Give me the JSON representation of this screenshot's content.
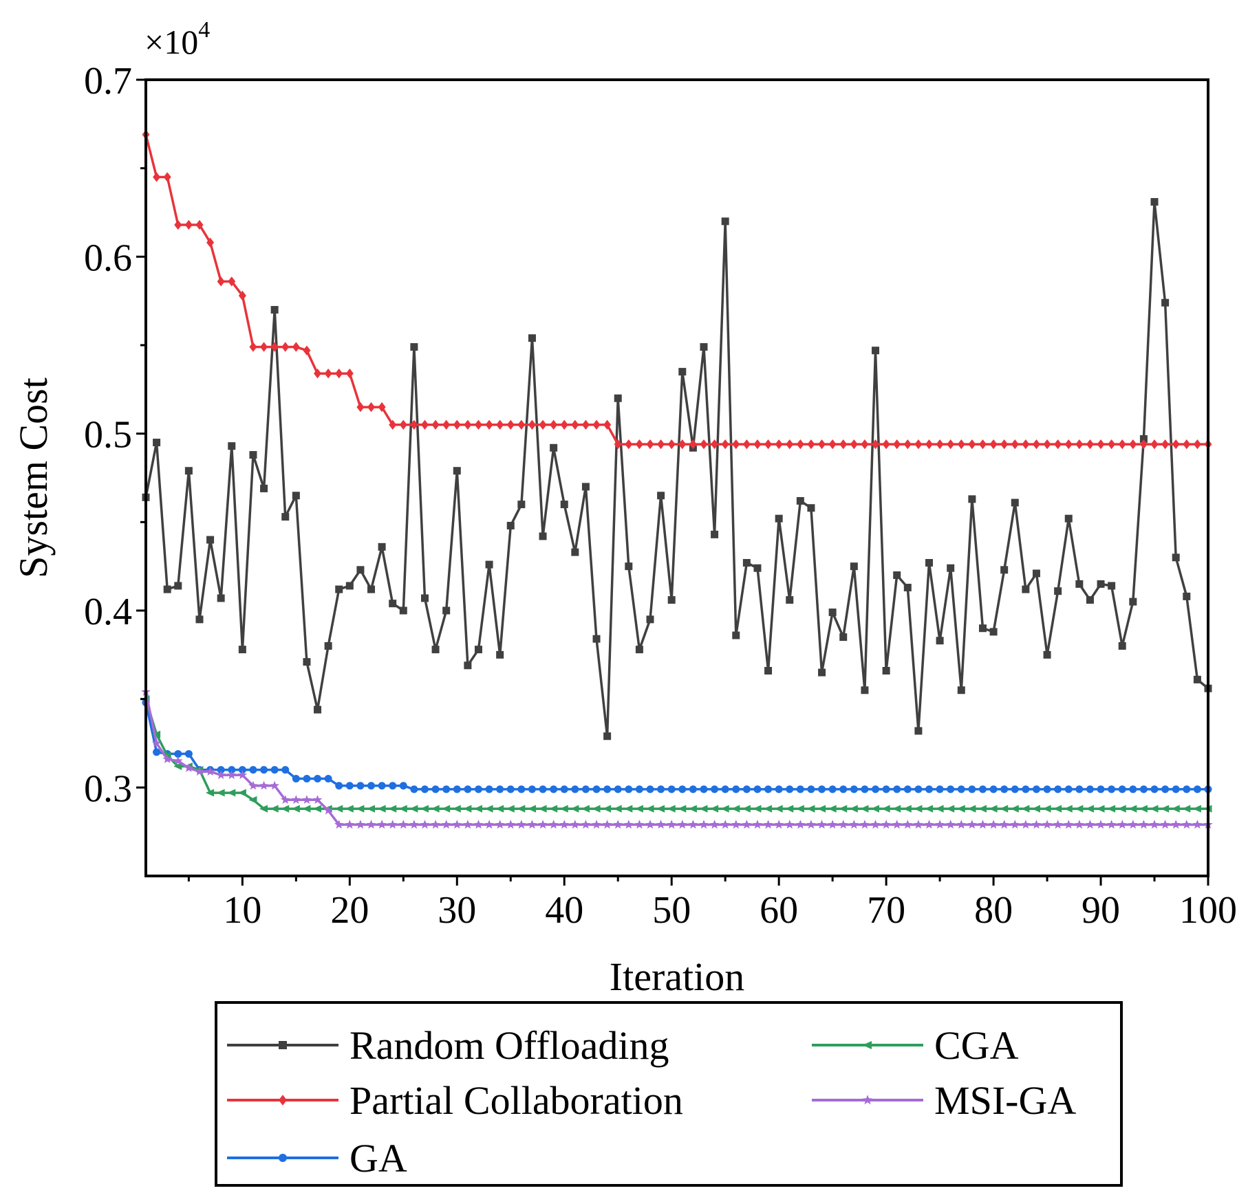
{
  "chart_data": {
    "type": "line",
    "title": "",
    "xlabel": "Iteration",
    "ylabel": "System Cost",
    "y_multiplier": {
      "base": "×10",
      "exponent": "4"
    },
    "xlim": [
      1,
      100
    ],
    "ylim": [
      0.25,
      0.7
    ],
    "x_ticks": [
      10,
      20,
      30,
      40,
      50,
      60,
      70,
      80,
      90,
      100
    ],
    "x_tick_labels": [
      "10",
      "20",
      "30",
      "40",
      "50",
      "60",
      "70",
      "80",
      "90",
      "100"
    ],
    "y_ticks": [
      0.3,
      0.4,
      0.5,
      0.6,
      0.7
    ],
    "y_tick_labels": [
      "0.3",
      "0.4",
      "0.5",
      "0.6",
      "0.7"
    ],
    "grid": false,
    "legend_position": "bottom-outside",
    "series": [
      {
        "name": "Random Offloading",
        "color": "#404040",
        "marker": "square",
        "values": [
          0.464,
          0.495,
          0.412,
          0.414,
          0.479,
          0.395,
          0.44,
          0.407,
          0.493,
          0.378,
          0.488,
          0.469,
          0.57,
          0.453,
          0.465,
          0.371,
          0.344,
          0.38,
          0.412,
          0.414,
          0.423,
          0.412,
          0.436,
          0.404,
          0.4,
          0.549,
          0.407,
          0.378,
          0.4,
          0.479,
          0.369,
          0.378,
          0.426,
          0.375,
          0.448,
          0.46,
          0.554,
          0.442,
          0.492,
          0.46,
          0.433,
          0.47,
          0.384,
          0.329,
          0.52,
          0.425,
          0.378,
          0.395,
          0.465,
          0.406,
          0.535,
          0.492,
          0.549,
          0.443,
          0.62,
          0.386,
          0.427,
          0.424,
          0.366,
          0.452,
          0.406,
          0.462,
          0.458,
          0.365,
          0.399,
          0.385,
          0.425,
          0.355,
          0.547,
          0.366,
          0.42,
          0.413,
          0.332,
          0.427,
          0.383,
          0.424,
          0.355,
          0.463,
          0.39,
          0.388,
          0.423,
          0.461,
          0.412,
          0.421,
          0.375,
          0.411,
          0.452,
          0.415,
          0.406,
          0.415,
          0.414,
          0.38,
          0.405,
          0.497,
          0.631,
          0.574,
          0.43,
          0.408,
          0.361,
          0.356
        ]
      },
      {
        "name": "Partial Collaboration",
        "color": "#e8333b",
        "marker": "diamond",
        "values": [
          0.669,
          0.645,
          0.645,
          0.618,
          0.618,
          0.618,
          0.608,
          0.586,
          0.586,
          0.578,
          0.549,
          0.549,
          0.549,
          0.549,
          0.549,
          0.547,
          0.534,
          0.534,
          0.534,
          0.534,
          0.515,
          0.515,
          0.515,
          0.505,
          0.505,
          0.505,
          0.505,
          0.505,
          0.505,
          0.505,
          0.505,
          0.505,
          0.505,
          0.505,
          0.505,
          0.505,
          0.505,
          0.505,
          0.505,
          0.505,
          0.505,
          0.505,
          0.505,
          0.505,
          0.494,
          0.494,
          0.494,
          0.494,
          0.494,
          0.494,
          0.494,
          0.494,
          0.494,
          0.494,
          0.494,
          0.494,
          0.494,
          0.494,
          0.494,
          0.494,
          0.494,
          0.494,
          0.494,
          0.494,
          0.494,
          0.494,
          0.494,
          0.494,
          0.494,
          0.494,
          0.494,
          0.494,
          0.494,
          0.494,
          0.494,
          0.494,
          0.494,
          0.494,
          0.494,
          0.494,
          0.494,
          0.494,
          0.494,
          0.494,
          0.494,
          0.494,
          0.494,
          0.494,
          0.494,
          0.494,
          0.494,
          0.494,
          0.494,
          0.494,
          0.494,
          0.494,
          0.494,
          0.494,
          0.494,
          0.494
        ]
      },
      {
        "name": "GA",
        "color": "#1f6fe0",
        "marker": "circle",
        "values": [
          0.348,
          0.32,
          0.319,
          0.319,
          0.319,
          0.31,
          0.31,
          0.31,
          0.31,
          0.31,
          0.31,
          0.31,
          0.31,
          0.31,
          0.305,
          0.305,
          0.305,
          0.305,
          0.301,
          0.301,
          0.301,
          0.301,
          0.301,
          0.301,
          0.301,
          0.299,
          0.299,
          0.299,
          0.299,
          0.299,
          0.299,
          0.299,
          0.299,
          0.299,
          0.299,
          0.299,
          0.299,
          0.299,
          0.299,
          0.299,
          0.299,
          0.299,
          0.299,
          0.299,
          0.299,
          0.299,
          0.299,
          0.299,
          0.299,
          0.299,
          0.299,
          0.299,
          0.299,
          0.299,
          0.299,
          0.299,
          0.299,
          0.299,
          0.299,
          0.299,
          0.299,
          0.299,
          0.299,
          0.299,
          0.299,
          0.299,
          0.299,
          0.299,
          0.299,
          0.299,
          0.299,
          0.299,
          0.299,
          0.299,
          0.299,
          0.299,
          0.299,
          0.299,
          0.299,
          0.299,
          0.299,
          0.299,
          0.299,
          0.299,
          0.299,
          0.299,
          0.299,
          0.299,
          0.299,
          0.299,
          0.299,
          0.299,
          0.299,
          0.299,
          0.299,
          0.299,
          0.299,
          0.299,
          0.299,
          0.299
        ]
      },
      {
        "name": "CGA",
        "color": "#2e9e5b",
        "marker": "left-triangle",
        "values": [
          0.35,
          0.33,
          0.318,
          0.312,
          0.312,
          0.31,
          0.297,
          0.297,
          0.297,
          0.297,
          0.293,
          0.288,
          0.288,
          0.288,
          0.288,
          0.288,
          0.288,
          0.288,
          0.288,
          0.288,
          0.288,
          0.288,
          0.288,
          0.288,
          0.288,
          0.288,
          0.288,
          0.288,
          0.288,
          0.288,
          0.288,
          0.288,
          0.288,
          0.288,
          0.288,
          0.288,
          0.288,
          0.288,
          0.288,
          0.288,
          0.288,
          0.288,
          0.288,
          0.288,
          0.288,
          0.288,
          0.288,
          0.288,
          0.288,
          0.288,
          0.288,
          0.288,
          0.288,
          0.288,
          0.288,
          0.288,
          0.288,
          0.288,
          0.288,
          0.288,
          0.288,
          0.288,
          0.288,
          0.288,
          0.288,
          0.288,
          0.288,
          0.288,
          0.288,
          0.288,
          0.288,
          0.288,
          0.288,
          0.288,
          0.288,
          0.288,
          0.288,
          0.288,
          0.288,
          0.288,
          0.288,
          0.288,
          0.288,
          0.288,
          0.288,
          0.288,
          0.288,
          0.288,
          0.288,
          0.288,
          0.288,
          0.288,
          0.288,
          0.288,
          0.288,
          0.288,
          0.288,
          0.288,
          0.288,
          0.288
        ]
      },
      {
        "name": "MSI-GA",
        "color": "#a66bd6",
        "marker": "star",
        "values": [
          0.354,
          0.325,
          0.316,
          0.315,
          0.311,
          0.309,
          0.309,
          0.307,
          0.307,
          0.307,
          0.301,
          0.301,
          0.301,
          0.293,
          0.293,
          0.293,
          0.293,
          0.287,
          0.279,
          0.279,
          0.279,
          0.279,
          0.279,
          0.279,
          0.279,
          0.279,
          0.279,
          0.279,
          0.279,
          0.279,
          0.279,
          0.279,
          0.279,
          0.279,
          0.279,
          0.279,
          0.279,
          0.279,
          0.279,
          0.279,
          0.279,
          0.279,
          0.279,
          0.279,
          0.279,
          0.279,
          0.279,
          0.279,
          0.279,
          0.279,
          0.279,
          0.279,
          0.279,
          0.279,
          0.279,
          0.279,
          0.279,
          0.279,
          0.279,
          0.279,
          0.279,
          0.279,
          0.279,
          0.279,
          0.279,
          0.279,
          0.279,
          0.279,
          0.279,
          0.279,
          0.279,
          0.279,
          0.279,
          0.279,
          0.279,
          0.279,
          0.279,
          0.279,
          0.279,
          0.279,
          0.279,
          0.279,
          0.279,
          0.279,
          0.279,
          0.279,
          0.279,
          0.279,
          0.279,
          0.279,
          0.279,
          0.279,
          0.279,
          0.279,
          0.279,
          0.279,
          0.279,
          0.279,
          0.279,
          0.279
        ]
      }
    ]
  }
}
